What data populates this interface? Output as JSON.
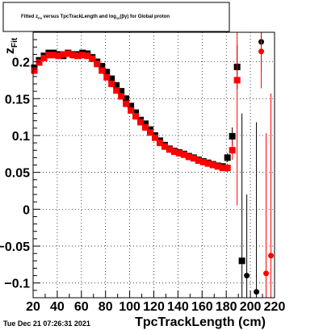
{
  "chart_data": {
    "type": "scatter",
    "title": "Fitted z_{Fit} versus TpcTrackLength and log_{10}(βγ) for Global proton",
    "title_parts": {
      "pre": "Fitted  z",
      "sub1": "Fit",
      "mid": "  versus TpcTrackLength and log",
      "sub2": "10",
      "post": "(βγ) for Global proton"
    },
    "xlabel": "TpcTrackLength (cm)",
    "ylabel": "z",
    "ylabel_sub": "Fit",
    "xlim": [
      20,
      220
    ],
    "ylim": [
      -0.12,
      0.24
    ],
    "x_ticks": [
      20,
      40,
      60,
      80,
      100,
      120,
      140,
      160,
      180,
      200,
      220
    ],
    "x_tick_labels": [
      "20",
      "40",
      "60",
      "80",
      "100",
      "120",
      "140",
      "160",
      "180",
      "200",
      "220"
    ],
    "y_ticks": [
      -0.1,
      -0.05,
      0,
      0.05,
      0.1,
      0.15,
      0.2
    ],
    "y_tick_labels": [
      "−0.1",
      "−0.05",
      "0",
      "0.05",
      "0.1",
      "0.15",
      "0.2"
    ],
    "grid": true,
    "timestamp": "Tue Dec 21 07:26:31 2021",
    "series": [
      {
        "color": "#000000",
        "x": [
          21,
          25,
          29,
          33,
          37,
          41,
          45,
          49,
          53,
          57,
          61,
          65,
          69,
          73,
          77,
          81,
          85,
          89,
          93,
          97,
          101,
          105,
          109,
          113,
          117,
          121,
          125,
          129,
          133,
          137,
          141,
          145,
          149,
          153,
          157,
          161,
          165,
          169,
          173,
          177,
          181,
          185,
          189,
          193,
          197,
          205,
          209
        ],
        "y": [
          0.192,
          0.202,
          0.208,
          0.212,
          0.212,
          0.21,
          0.208,
          0.212,
          0.21,
          0.21,
          0.212,
          0.211,
          0.206,
          0.2,
          0.194,
          0.186,
          0.177,
          0.168,
          0.16,
          0.15,
          0.14,
          0.131,
          0.121,
          0.116,
          0.108,
          0.1,
          0.093,
          0.087,
          0.082,
          0.079,
          0.077,
          0.075,
          0.072,
          0.07,
          0.067,
          0.065,
          0.063,
          0.061,
          0.059,
          0.058,
          0.07,
          0.099,
          0.193,
          -0.07,
          -0.09,
          -0.112,
          0.227
        ],
        "yerr": [
          0.003,
          0.003,
          0.003,
          0.003,
          0.003,
          0.003,
          0.003,
          0.003,
          0.003,
          0.003,
          0.003,
          0.003,
          0.003,
          0.003,
          0.003,
          0.003,
          0.003,
          0.003,
          0.003,
          0.003,
          0.003,
          0.003,
          0.003,
          0.003,
          0.003,
          0.003,
          0.003,
          0.003,
          0.003,
          0.003,
          0.003,
          0.003,
          0.003,
          0.003,
          0.003,
          0.003,
          0.003,
          0.003,
          0.003,
          0.004,
          0.006,
          0.012,
          0.03,
          0.2,
          0.11,
          0.23,
          0.04
        ]
      },
      {
        "color": "#ff0000",
        "x": [
          21,
          25,
          29,
          33,
          37,
          41,
          45,
          49,
          53,
          57,
          61,
          65,
          69,
          73,
          77,
          81,
          85,
          89,
          93,
          97,
          101,
          105,
          109,
          113,
          117,
          121,
          125,
          129,
          133,
          137,
          141,
          145,
          149,
          153,
          157,
          161,
          165,
          169,
          173,
          177,
          181,
          185,
          189,
          209,
          213,
          217
        ],
        "y": [
          0.188,
          0.199,
          0.205,
          0.209,
          0.209,
          0.208,
          0.21,
          0.211,
          0.209,
          0.208,
          0.209,
          0.208,
          0.204,
          0.197,
          0.188,
          0.179,
          0.17,
          0.161,
          0.153,
          0.143,
          0.134,
          0.126,
          0.118,
          0.111,
          0.104,
          0.097,
          0.09,
          0.085,
          0.081,
          0.078,
          0.076,
          0.074,
          0.071,
          0.069,
          0.066,
          0.064,
          0.062,
          0.06,
          0.058,
          0.056,
          0.056,
          0.08,
          0.175,
          0.214,
          -0.087,
          -0.063
        ],
        "yerr": [
          0.003,
          0.003,
          0.003,
          0.003,
          0.003,
          0.003,
          0.003,
          0.003,
          0.003,
          0.003,
          0.003,
          0.003,
          0.003,
          0.003,
          0.003,
          0.003,
          0.003,
          0.003,
          0.003,
          0.003,
          0.003,
          0.003,
          0.003,
          0.003,
          0.003,
          0.003,
          0.003,
          0.003,
          0.003,
          0.003,
          0.003,
          0.003,
          0.003,
          0.003,
          0.003,
          0.003,
          0.003,
          0.003,
          0.003,
          0.004,
          0.006,
          0.013,
          0.17,
          0.05,
          0.19,
          0.22
        ]
      }
    ]
  }
}
